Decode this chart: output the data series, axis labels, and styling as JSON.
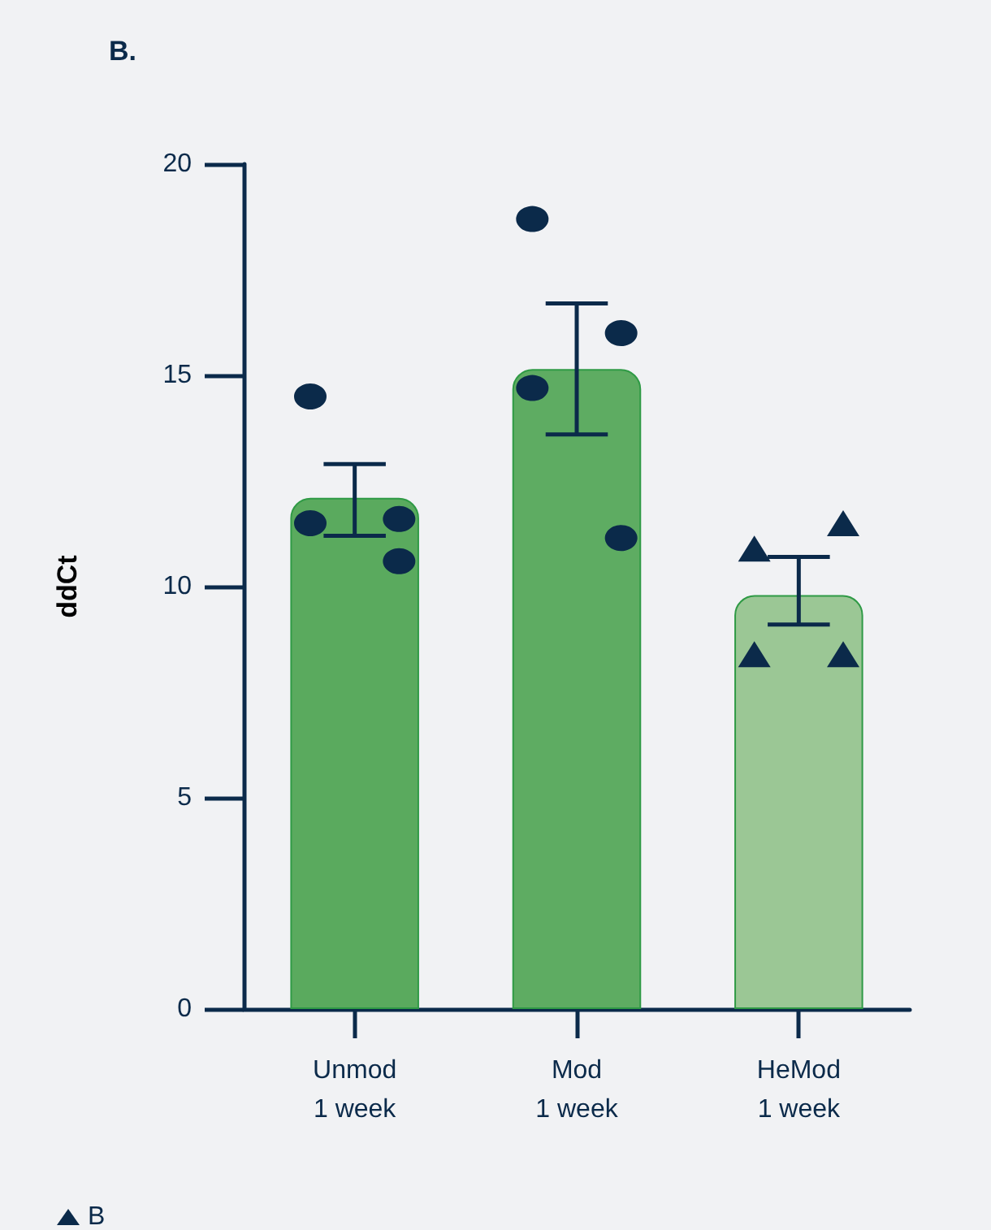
{
  "chart_data": {
    "type": "bar",
    "title": "B.",
    "ylabel": "ddCt",
    "categories": [
      "Unmod\n1 week",
      "Mod\n1 week",
      "HeMod\n1 week"
    ],
    "values": [
      12.1,
      15.15,
      9.8
    ],
    "colors": [
      "#5aaa5e",
      "#5eac62",
      "#9bc795"
    ],
    "errors": [
      [
        11.2,
        12.9
      ],
      [
        13.6,
        16.7
      ],
      [
        9.1,
        10.7
      ]
    ],
    "series": [
      {
        "type": "scatter",
        "marker": "circle",
        "color": "#0b2a4a",
        "x": [
          "Unmod\n1 week",
          "Unmod\n1 week",
          "Unmod\n1 week",
          "Unmod\n1 week",
          "Mod\n1 week",
          "Mod\n1 week",
          "Mod\n1 week",
          "Mod\n1 week"
        ],
        "values": [
          14.5,
          11.6,
          11.5,
          10.6,
          18.7,
          16.0,
          14.7,
          11.15
        ]
      },
      {
        "type": "scatter",
        "marker": "triangle",
        "name": "B",
        "color": "#0b2a4a",
        "x": [
          "HeMod\n1 week",
          "HeMod\n1 week",
          "HeMod\n1 week",
          "HeMod\n1 week"
        ],
        "values": [
          10.9,
          11.5,
          8.4,
          8.4
        ]
      }
    ],
    "ylim": [
      0,
      20
    ],
    "yticks": [
      0,
      5,
      10,
      15,
      20
    ],
    "grid": false,
    "legend": "bottom left"
  }
}
